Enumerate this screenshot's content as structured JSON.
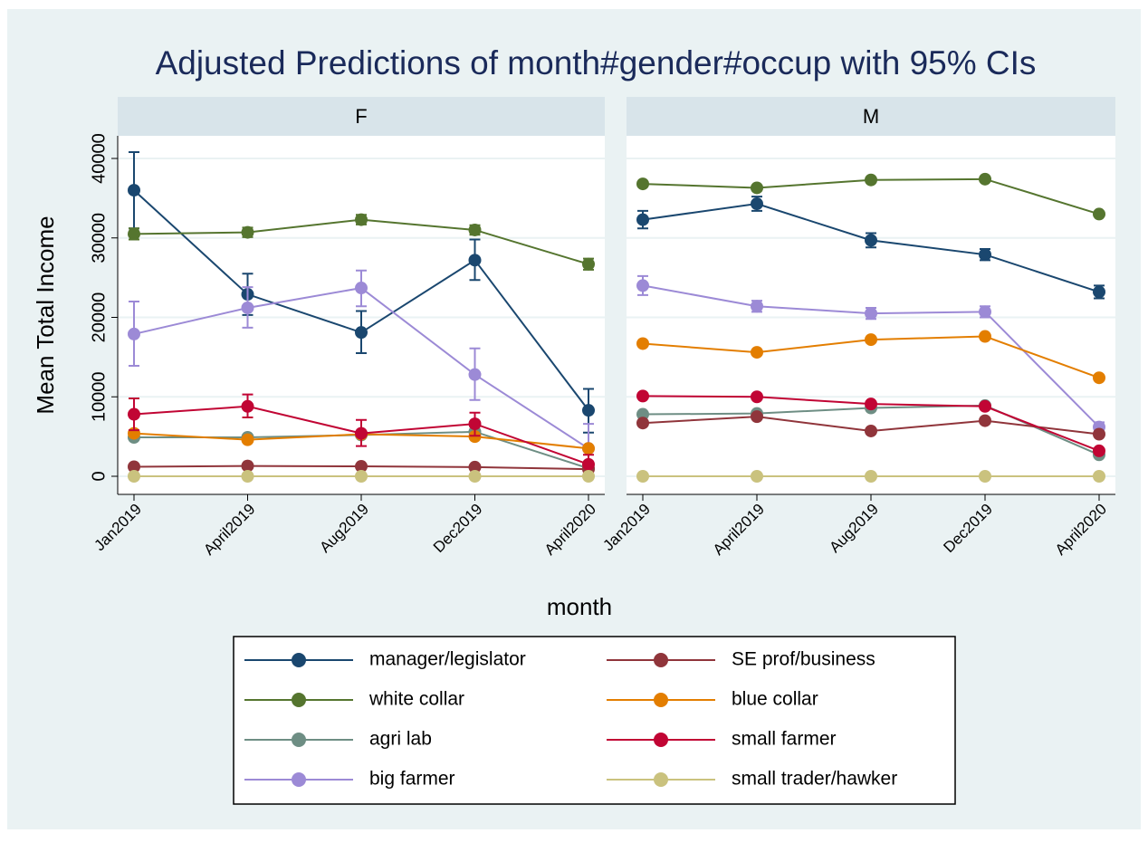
{
  "title": "Adjusted Predictions of month#gender#occup with 95% CIs",
  "x_label": "month",
  "y_label": "Mean Total Income",
  "legend": {
    "items": [
      {
        "name": "manager/legislator",
        "color": "#1a476f"
      },
      {
        "name": "white collar",
        "color": "#55752f"
      },
      {
        "name": "agri lab",
        "color": "#6e8e84"
      },
      {
        "name": "big farmer",
        "color": "#9c8ad6"
      },
      {
        "name": "SE prof/business",
        "color": "#90353b"
      },
      {
        "name": "blue collar",
        "color": "#e37e00"
      },
      {
        "name": "small farmer",
        "color": "#c10534"
      },
      {
        "name": "small trader/hawker",
        "color": "#cac27e"
      }
    ]
  },
  "chart_data": [
    {
      "type": "line",
      "title": "F",
      "categories": [
        "Jan2019",
        "April2019",
        "Aug2019",
        "Dec2019",
        "April2020"
      ],
      "ylim": [
        -2280,
        42850
      ],
      "yticks": [
        0,
        10000,
        20000,
        30000,
        40000
      ],
      "grid": true,
      "series": [
        {
          "values": [
            36000,
            22900,
            18100,
            27200,
            8300
          ],
          "ci_low": [
            31200,
            20300,
            15500,
            24700,
            5500
          ],
          "ci_high": [
            40800,
            25500,
            20800,
            29800,
            11000
          ]
        },
        {
          "values": [
            30500,
            30700,
            32300,
            31000,
            26700
          ],
          "ci_low": [
            29800,
            30100,
            31700,
            30400,
            26000
          ],
          "ci_high": [
            31200,
            31300,
            32900,
            31600,
            27400
          ]
        },
        {
          "values": [
            4900,
            4900,
            5200,
            5600,
            1000
          ]
        },
        {
          "values": [
            17900,
            21200,
            23700,
            12800,
            3500
          ],
          "ci_low": [
            13900,
            18700,
            21400,
            9600,
            500
          ],
          "ci_high": [
            22000,
            23800,
            25900,
            16100,
            6600
          ]
        },
        {
          "values": [
            1200,
            1300,
            1250,
            1150,
            900
          ]
        },
        {
          "values": [
            5400,
            4600,
            5300,
            5000,
            3500
          ]
        },
        {
          "values": [
            7800,
            8800,
            5400,
            6600,
            1500
          ],
          "ci_low": [
            5800,
            7400,
            3800,
            5100,
            400
          ],
          "ci_high": [
            9800,
            10300,
            7100,
            8000,
            2700
          ]
        },
        {
          "values": [
            0,
            0,
            0,
            0,
            0
          ]
        }
      ]
    },
    {
      "type": "line",
      "title": "M",
      "categories": [
        "Jan2019",
        "April2019",
        "Aug2019",
        "Dec2019",
        "April2020"
      ],
      "ylim": [
        -2280,
        42850
      ],
      "yticks": [
        0,
        10000,
        20000,
        30000,
        40000
      ],
      "grid": true,
      "series": [
        {
          "values": [
            32300,
            34300,
            29700,
            27900,
            23200
          ],
          "ci_low": [
            31200,
            33400,
            28800,
            27200,
            22400
          ],
          "ci_high": [
            33400,
            35200,
            30600,
            28600,
            24000
          ]
        },
        {
          "values": [
            36800,
            36300,
            37300,
            37400,
            33000
          ]
        },
        {
          "values": [
            7800,
            7900,
            8600,
            8900,
            2700
          ]
        },
        {
          "values": [
            24000,
            21400,
            20500,
            20700,
            6200
          ],
          "ci_low": [
            22800,
            20700,
            19800,
            20000,
            5600
          ],
          "ci_high": [
            25200,
            22100,
            21200,
            21400,
            6800
          ]
        },
        {
          "values": [
            6700,
            7500,
            5700,
            7000,
            5300
          ]
        },
        {
          "values": [
            16700,
            15600,
            17200,
            17600,
            12400
          ]
        },
        {
          "values": [
            10100,
            10000,
            9100,
            8800,
            3200
          ]
        },
        {
          "values": [
            0,
            0,
            0,
            0,
            0
          ]
        }
      ]
    }
  ]
}
